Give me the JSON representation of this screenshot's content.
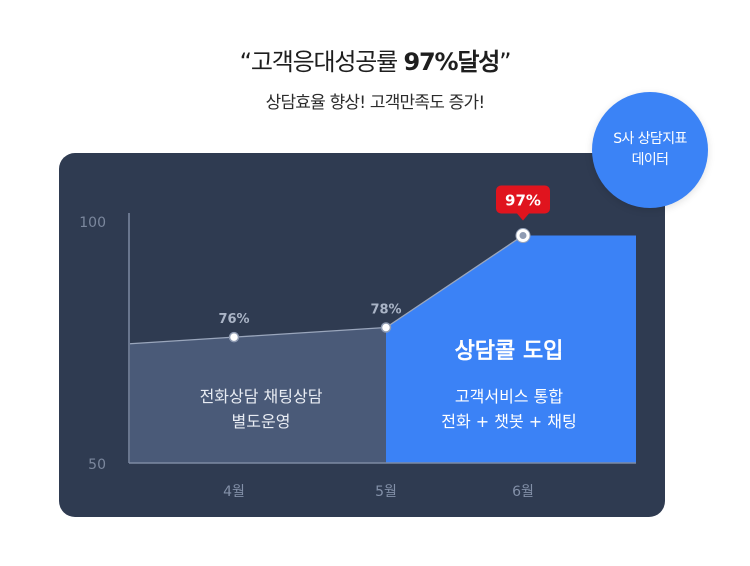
{
  "header": {
    "title_quote_open": "“",
    "title_prefix": "고객응대성공률 ",
    "title_highlight": "97%달성",
    "title_quote_close": "”",
    "subtitle": "상담효율 향상! 고객만족도 증가!"
  },
  "badge": {
    "line1": "S사 상담지표",
    "line2": "데이터"
  },
  "chart_data": {
    "type": "area",
    "x": [
      "4월",
      "5월",
      "6월"
    ],
    "y_ticks": [
      "100",
      "50"
    ],
    "ylim": [
      50,
      100
    ],
    "series": [
      {
        "values": [
          76,
          78,
          97
        ]
      }
    ],
    "point_labels": [
      "76%",
      "78%",
      "97%"
    ],
    "highlight_label": "97%",
    "regions": [
      {
        "lines": [
          "전화상담 채팅상담",
          "별도운영"
        ],
        "color": "#4a5a78"
      },
      {
        "title": "상담콜 도입",
        "lines": [
          "고객서비스 통합",
          "전화 + 챗봇 + 채팅"
        ],
        "color": "#3b82f6"
      }
    ],
    "colors": {
      "panel": "#2f3b51",
      "before_area": "#4a5a78",
      "after_area": "#3b82f6",
      "highlight_tag": "#e0141e"
    },
    "grid": false
  }
}
